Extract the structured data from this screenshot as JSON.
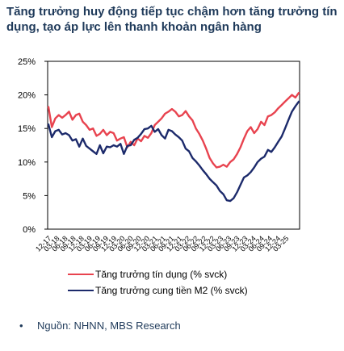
{
  "title": "Tăng trưởng huy động tiếp tục chậm hơn tăng trưởng tín dụng, tạo áp lực lên thanh khoản ngân hàng",
  "source": "Nguồn: NHNN, MBS Research",
  "colors": {
    "credit": "#e8434f",
    "m2": "#1c2a6b",
    "axis": "#000000"
  },
  "chart_data": {
    "type": "line",
    "title": "Tăng trưởng huy động tiếp tục chậm hơn tăng trưởng tín dụng, tạo áp lực lên thanh khoản ngân hàng",
    "xlabel": "",
    "ylabel": "",
    "ylim": [
      0,
      25
    ],
    "yticks": [
      "0%",
      "5%",
      "10%",
      "15%",
      "20%",
      "25%"
    ],
    "xticks": [
      "12-17",
      "03-18",
      "06-18",
      "09-18",
      "12-18",
      "03-19",
      "06-19",
      "09-19",
      "12-19",
      "03-20",
      "06-20",
      "09-20",
      "12-20",
      "03-21",
      "06-21",
      "09-21",
      "12-21",
      "03-22",
      "06-22",
      "09-22",
      "12-22",
      "03-23",
      "06-23",
      "09-23",
      "12-23",
      "03-24",
      "06-24",
      "09-24",
      "12-24",
      "03-25"
    ],
    "legend_position": "bottom",
    "grid": false,
    "series": [
      {
        "name": "Tăng trưởng tín dụng (% svck)",
        "values": [
          18.2,
          15.2,
          16.5,
          17.0,
          16.6,
          17.0,
          17.5,
          16.3,
          17.0,
          17.2,
          16.0,
          15.5,
          14.8,
          15.0,
          13.9,
          14.2,
          14.8,
          14.0,
          14.5,
          14.3,
          13.2,
          13.5,
          13.7,
          12.2,
          13.0,
          12.5,
          13.5,
          13.1,
          13.9,
          13.6,
          14.3,
          15.5,
          16.0,
          16.5,
          17.2,
          17.5,
          17.9,
          17.5,
          16.8,
          17.0,
          17.6,
          16.8,
          16.2,
          15.0,
          14.2,
          13.2,
          12.0,
          10.6,
          9.8,
          9.2,
          9.3,
          9.6,
          9.3,
          10.0,
          10.4,
          11.2,
          12.2,
          13.5,
          14.6,
          15.2,
          14.3,
          14.9,
          16.0,
          15.5,
          16.8,
          17.0,
          17.4,
          18.0,
          18.5,
          19.0,
          19.5,
          20.0,
          19.6,
          20.3
        ]
      },
      {
        "name": "Tăng trưởng cung tiền M2 (% svck)",
        "values": [
          15.6,
          13.7,
          14.6,
          14.8,
          14.1,
          14.3,
          14.0,
          13.2,
          13.4,
          12.3,
          13.5,
          12.4,
          12.0,
          11.6,
          11.2,
          12.5,
          11.3,
          12.3,
          12.2,
          12.5,
          12.3,
          12.7,
          11.2,
          12.4,
          12.5,
          13.3,
          13.6,
          14.2,
          14.9,
          15.0,
          15.4,
          14.5,
          14.9,
          14.0,
          13.5,
          14.8,
          14.6,
          14.1,
          13.7,
          13.2,
          12.0,
          11.6,
          10.6,
          10.1,
          9.5,
          8.8,
          8.2,
          7.5,
          7.0,
          6.5,
          5.7,
          5.2,
          4.3,
          4.2,
          4.6,
          5.5,
          6.6,
          7.7,
          8.0,
          8.5,
          9.2,
          10.0,
          10.5,
          10.8,
          11.8,
          11.5,
          12.2,
          13.0,
          13.8,
          15.0,
          16.3,
          17.5,
          18.3,
          19.0
        ]
      }
    ]
  }
}
